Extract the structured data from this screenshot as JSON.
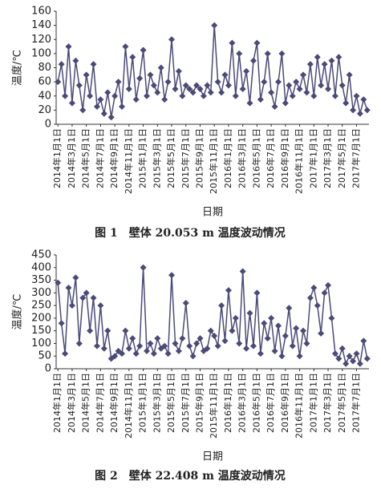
{
  "chart_data": [
    {
      "type": "line",
      "ylabel": "温度/℃",
      "xlabel": "日期",
      "caption": "图 1　壁体 20.053 m 温度波动情况",
      "color": "#4b4a78",
      "categories": [
        "2014年1月1日",
        null,
        null,
        null,
        "2014年3月1日",
        null,
        null,
        null,
        "2014年5月1日",
        null,
        null,
        null,
        "2014年7月1日",
        null,
        null,
        null,
        "2014年9月1日",
        null,
        null,
        null,
        "2014年11月1日",
        null,
        null,
        null,
        "2015年1月1日",
        null,
        null,
        null,
        "2015年3月1日",
        null,
        null,
        null,
        "2015年5月1日",
        null,
        null,
        null,
        "2015年7月1日",
        null,
        null,
        null,
        "2015年9月1日",
        null,
        null,
        null,
        "2015年11月1日",
        null,
        null,
        null,
        "2016年1月1日",
        null,
        null,
        null,
        "2016年3月1日",
        null,
        null,
        null,
        "2016年5月1日",
        null,
        null,
        null,
        "2016年7月1日",
        null,
        null,
        null,
        "2016年9月1日",
        null,
        null,
        null,
        "2016年11月1日",
        null,
        null,
        null,
        "2017年1月1日",
        null,
        null,
        null,
        "2017年3月1日",
        null,
        null,
        null,
        "2017年5月1日",
        null,
        null,
        null,
        "2017年7月1日",
        null,
        null,
        null
      ],
      "values": [
        60,
        85,
        40,
        110,
        30,
        90,
        55,
        20,
        70,
        40,
        85,
        25,
        35,
        15,
        45,
        10,
        40,
        60,
        25,
        110,
        50,
        95,
        35,
        65,
        105,
        40,
        70,
        55,
        45,
        80,
        35,
        60,
        120,
        50,
        75,
        40,
        55,
        50,
        45,
        55,
        50,
        40,
        55,
        45,
        140,
        60,
        45,
        70,
        55,
        115,
        40,
        100,
        50,
        75,
        30,
        90,
        115,
        35,
        60,
        100,
        45,
        25,
        60,
        100,
        30,
        55,
        40,
        60,
        50,
        70,
        45,
        85,
        40,
        95,
        55,
        85,
        50,
        90,
        40,
        95,
        55,
        30,
        70,
        20,
        40,
        15,
        35,
        20
      ],
      "ylim": [
        0,
        160
      ],
      "yticks": [
        0,
        20,
        40,
        60,
        80,
        100,
        120,
        140,
        160
      ]
    },
    {
      "type": "line",
      "ylabel": "温度/℃",
      "xlabel": "日期",
      "caption": "图 2　壁体 22.408 m 温度波动情况",
      "color": "#4b4a78",
      "categories": [
        "2014年1月1日",
        null,
        null,
        null,
        "2014年3月1日",
        null,
        null,
        null,
        "2014年5月1日",
        null,
        null,
        null,
        "2014年7月1日",
        null,
        null,
        null,
        "2014年9月1日",
        null,
        null,
        null,
        "2014年11月1日",
        null,
        null,
        null,
        "2015年1月1日",
        null,
        null,
        null,
        "2015年3月1日",
        null,
        null,
        null,
        "2015年5月1日",
        null,
        null,
        null,
        "2015年7月1日",
        null,
        null,
        null,
        "2015年9月1日",
        null,
        null,
        null,
        "2015年11月1日",
        null,
        null,
        null,
        "2016年1月1日",
        null,
        null,
        null,
        "2016年3月1日",
        null,
        null,
        null,
        "2016年5月1日",
        null,
        null,
        null,
        "2016年7月1日",
        null,
        null,
        null,
        "2016年9月1日",
        null,
        null,
        null,
        "2016年11月1日",
        null,
        null,
        null,
        "2017年1月1日",
        null,
        null,
        null,
        "2017年3月1日",
        null,
        null,
        null,
        "2017年5月1日",
        null,
        null,
        null,
        "2017年7月1日",
        null,
        null,
        null
      ],
      "values": [
        340,
        180,
        60,
        320,
        250,
        360,
        100,
        280,
        300,
        150,
        280,
        90,
        250,
        80,
        150,
        40,
        50,
        70,
        60,
        150,
        80,
        120,
        60,
        90,
        400,
        70,
        100,
        60,
        120,
        80,
        90,
        60,
        370,
        100,
        70,
        120,
        260,
        90,
        50,
        100,
        120,
        70,
        80,
        150,
        130,
        90,
        250,
        110,
        310,
        150,
        200,
        100,
        385,
        80,
        220,
        90,
        300,
        60,
        180,
        120,
        200,
        70,
        170,
        50,
        130,
        240,
        90,
        160,
        50,
        150,
        100,
        280,
        320,
        250,
        140,
        300,
        330,
        200,
        60,
        40,
        80,
        20,
        50,
        30,
        60,
        20,
        110,
        40
      ],
      "ylim": [
        0,
        450
      ],
      "yticks": [
        0,
        50,
        100,
        150,
        200,
        250,
        300,
        350,
        400,
        450
      ]
    }
  ]
}
